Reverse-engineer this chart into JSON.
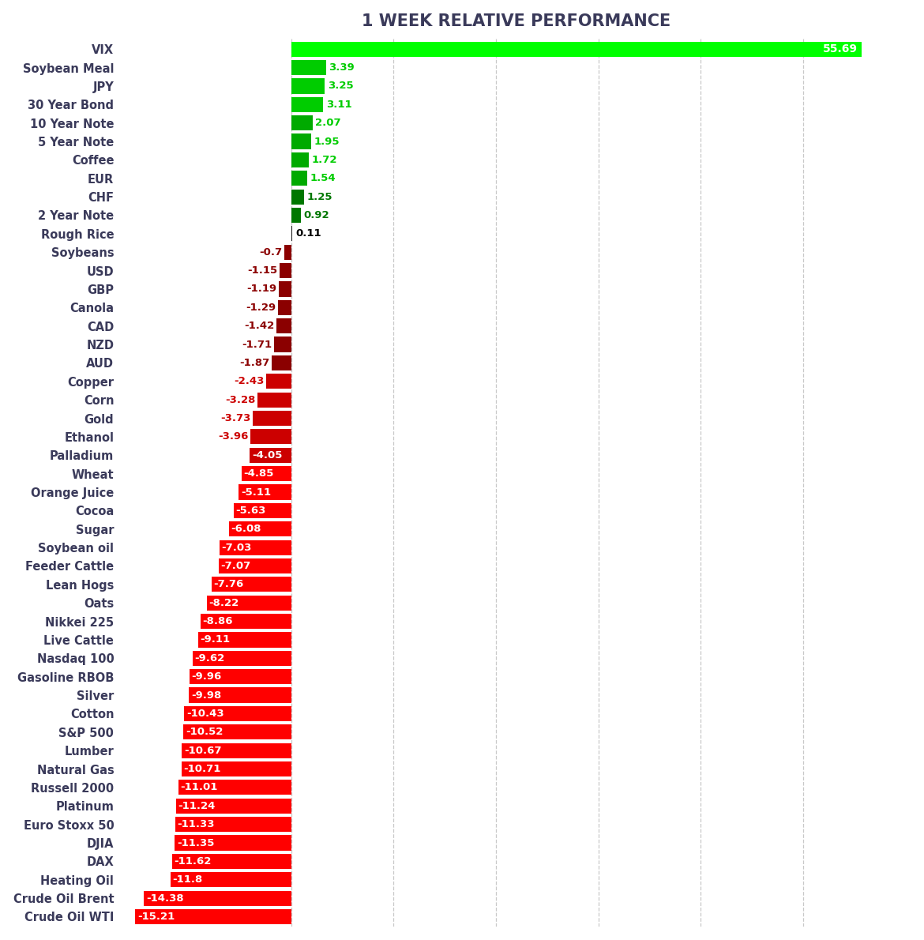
{
  "title": "1 WEEK RELATIVE PERFORMANCE",
  "categories": [
    "VIX",
    "Soybean Meal",
    "JPY",
    "30 Year Bond",
    "10 Year Note",
    "5 Year Note",
    "Coffee",
    "EUR",
    "CHF",
    "2 Year Note",
    "Rough Rice",
    "Soybeans",
    "USD",
    "GBP",
    "Canola",
    "CAD",
    "NZD",
    "AUD",
    "Copper",
    "Corn",
    "Gold",
    "Ethanol",
    "Palladium",
    "Wheat",
    "Orange Juice",
    "Cocoa",
    "Sugar",
    "Soybean oil",
    "Feeder Cattle",
    "Lean Hogs",
    "Oats",
    "Nikkei 225",
    "Live Cattle",
    "Nasdaq 100",
    "Gasoline RBOB",
    "Silver",
    "Cotton",
    "S&P 500",
    "Lumber",
    "Natural Gas",
    "Russell 2000",
    "Platinum",
    "Euro Stoxx 50",
    "DJIA",
    "DAX",
    "Heating Oil",
    "Crude Oil Brent",
    "Crude Oil WTI"
  ],
  "values": [
    55.69,
    3.39,
    3.25,
    3.11,
    2.07,
    1.95,
    1.72,
    1.54,
    1.25,
    0.92,
    0.11,
    -0.7,
    -1.15,
    -1.19,
    -1.29,
    -1.42,
    -1.71,
    -1.87,
    -2.43,
    -3.28,
    -3.73,
    -3.96,
    -4.05,
    -4.85,
    -5.11,
    -5.63,
    -6.08,
    -7.03,
    -7.07,
    -7.76,
    -8.22,
    -8.86,
    -9.11,
    -9.62,
    -9.96,
    -9.98,
    -10.43,
    -10.52,
    -10.67,
    -10.71,
    -11.01,
    -11.24,
    -11.33,
    -11.35,
    -11.62,
    -11.8,
    -14.38,
    -15.21
  ],
  "bg_color": "#ffffff",
  "grid_color": "#bbbbbb",
  "title_color": "#3a3a5a",
  "label_color": "#3a3a5a",
  "title_fontsize": 15,
  "label_fontsize": 10.5,
  "value_fontsize": 9.5,
  "xlim_left": -16.5,
  "xlim_right": 60.5,
  "bar_height": 0.82
}
